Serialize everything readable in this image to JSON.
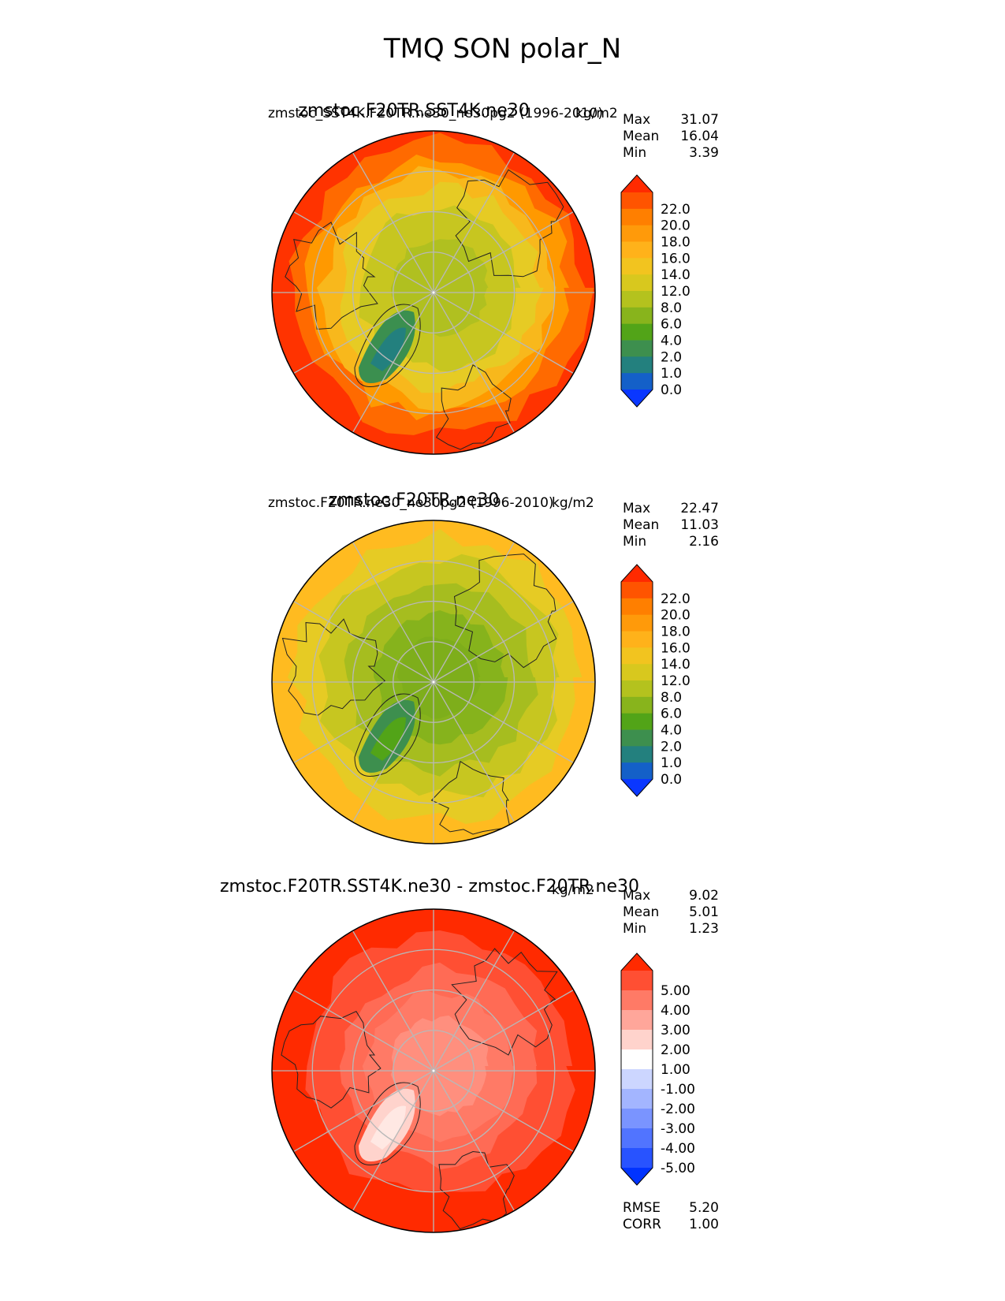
{
  "page_title": "TMQ SON polar_N",
  "chart_data": [
    {
      "type": "heatmap",
      "projection": "north polar stereographic",
      "title": "zmstoc.F20TR.SST4K.ne30",
      "subtitle": "zmstoc_SST4K.F20TR.ne30_ne30pg2 (1996-2010)",
      "units": "kg/m2",
      "stats": [
        {
          "label": "Max",
          "value": "31.07"
        },
        {
          "label": "Mean",
          "value": "16.04"
        },
        {
          "label": "Min",
          "value": "3.39"
        }
      ],
      "colorbar": {
        "extend": "both",
        "ticks": [
          "22.0",
          "20.0",
          "18.0",
          "16.0",
          "14.0",
          "12.0",
          "8.0",
          "6.0",
          "4.0",
          "2.0",
          "1.0",
          "0.0"
        ],
        "colors": [
          "#ff2a00",
          "#ff5400",
          "#ff7f00",
          "#ff9a0a",
          "#ffb21a",
          "#f2c41f",
          "#d8c81e",
          "#b4c21e",
          "#88b41c",
          "#52a418",
          "#3d8f4e",
          "#23807e",
          "#1460c8",
          "#0a37ff"
        ]
      }
    },
    {
      "type": "heatmap",
      "projection": "north polar stereographic",
      "title": "zmstoc.F20TR.ne30",
      "subtitle": "zmstoc.F20TR.ne30_ne30pg2 (1996-2010)",
      "units": "kg/m2",
      "stats": [
        {
          "label": "Max",
          "value": "22.47"
        },
        {
          "label": "Mean",
          "value": "11.03"
        },
        {
          "label": "Min",
          "value": "2.16"
        }
      ],
      "colorbar": {
        "extend": "both",
        "ticks": [
          "22.0",
          "20.0",
          "18.0",
          "16.0",
          "14.0",
          "12.0",
          "8.0",
          "6.0",
          "4.0",
          "2.0",
          "1.0",
          "0.0"
        ],
        "colors": [
          "#ff2a00",
          "#ff5400",
          "#ff7f00",
          "#ff9a0a",
          "#ffb21a",
          "#f2c41f",
          "#d8c81e",
          "#b4c21e",
          "#88b41c",
          "#52a418",
          "#3d8f4e",
          "#23807e",
          "#1460c8",
          "#0a37ff"
        ]
      }
    },
    {
      "type": "heatmap",
      "projection": "north polar stereographic",
      "title": "zmstoc.F20TR.SST4K.ne30 - zmstoc.F20TR.ne30",
      "subtitle": "",
      "units": "kg/m2",
      "stats": [
        {
          "label": "Max",
          "value": "9.02"
        },
        {
          "label": "Mean",
          "value": "5.01"
        },
        {
          "label": "Min",
          "value": "1.23"
        }
      ],
      "extra_stats": [
        {
          "label": "RMSE",
          "value": "5.20"
        },
        {
          "label": "CORR",
          "value": "1.00"
        }
      ],
      "colorbar": {
        "extend": "both",
        "ticks": [
          "5.00",
          "4.00",
          "3.00",
          "2.00",
          "1.00",
          "-1.00",
          "-2.00",
          "-3.00",
          "-4.00",
          "-5.00"
        ],
        "colors": [
          "#ff2a00",
          "#ff4f33",
          "#ff7a66",
          "#ffa69a",
          "#ffd3cc",
          "#ffffff",
          "#ccd6ff",
          "#a3b5ff",
          "#7a94ff",
          "#5174ff",
          "#2853ff",
          "#0033ff"
        ]
      }
    }
  ]
}
